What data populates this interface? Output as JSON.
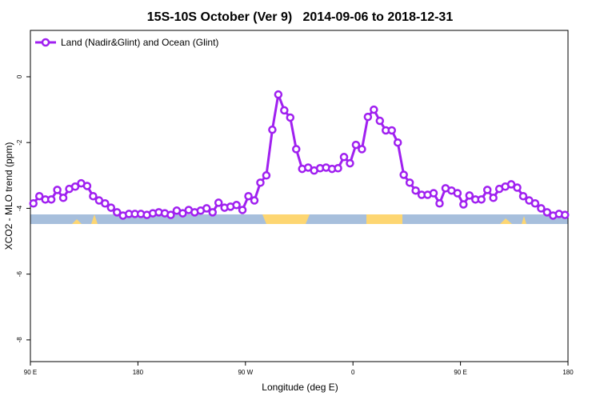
{
  "chart_data": {
    "type": "line",
    "title": "15S-10S October (Ver 9)   2014-09-06 to 2018-12-31",
    "xlabel": "Longitude (deg E)",
    "ylabel": "XCO2 - MLO trend (ppm)",
    "legend": "top-left",
    "xlim": [
      90,
      540
    ],
    "xticks": [
      {
        "value": 90,
        "label": "90 E"
      },
      180,
      {
        "value": 270,
        "label": "90 W"
      },
      {
        "value": 360,
        "label": "0"
      },
      {
        "value": 450,
        "label": "90 E"
      },
      {
        "value": 540,
        "label": "180"
      }
    ],
    "ylim": [
      -8.66,
      1.41
    ],
    "yticks": [
      0,
      -2,
      -4,
      -6,
      -8
    ],
    "x": [
      92.5,
      97.5,
      102.5,
      107.5,
      112.5,
      117.5,
      122.5,
      127.5,
      132.5,
      137.5,
      142.5,
      147.5,
      152.5,
      157.5,
      162.5,
      167.5,
      172.5,
      177.5,
      182.5,
      187.5,
      192.5,
      197.5,
      202.5,
      207.5,
      212.5,
      217.5,
      222.5,
      227.5,
      232.5,
      237.5,
      242.5,
      247.5,
      252.5,
      257.5,
      262.5,
      267.5,
      272.5,
      277.5,
      282.5,
      287.5,
      292.5,
      297.5,
      302.5,
      307.5,
      312.5,
      317.5,
      322.5,
      327.5,
      332.5,
      337.5,
      342.5,
      347.5,
      352.5,
      357.5,
      362.5,
      367.5,
      372.5,
      377.5,
      382.5,
      387.5,
      392.5,
      397.5,
      402.5,
      407.5,
      412.5,
      417.5,
      422.5,
      427.5,
      432.5,
      437.5,
      442.5,
      447.5,
      452.5,
      457.5,
      462.5,
      467.5,
      472.5,
      477.5,
      482.5,
      487.5,
      492.5,
      497.5,
      502.5,
      507.5,
      512.5,
      517.5,
      522.5,
      527.5,
      532.5,
      537.5
    ],
    "series": [
      {
        "name": "Land (Nadir&Glint) and Ocean (Glint)",
        "color": "#a020f0",
        "values": [
          -3.85,
          -3.63,
          -3.73,
          -3.73,
          -3.44,
          -3.68,
          -3.41,
          -3.34,
          -3.24,
          -3.32,
          -3.63,
          -3.76,
          -3.85,
          -3.98,
          -4.12,
          -4.22,
          -4.17,
          -4.17,
          -4.17,
          -4.2,
          -4.15,
          -4.12,
          -4.15,
          -4.2,
          -4.07,
          -4.15,
          -4.05,
          -4.12,
          -4.07,
          -4.0,
          -4.12,
          -3.83,
          -3.98,
          -3.95,
          -3.9,
          -4.05,
          -3.63,
          -3.76,
          -3.22,
          -3.0,
          -1.61,
          -0.54,
          -1.02,
          -1.24,
          -2.2,
          -2.8,
          -2.76,
          -2.85,
          -2.78,
          -2.76,
          -2.8,
          -2.78,
          -2.44,
          -2.63,
          -2.07,
          -2.2,
          -1.22,
          -1.0,
          -1.34,
          -1.63,
          -1.63,
          -2.0,
          -2.98,
          -3.22,
          -3.46,
          -3.59,
          -3.59,
          -3.54,
          -3.85,
          -3.39,
          -3.46,
          -3.54,
          -3.88,
          -3.61,
          -3.73,
          -3.73,
          -3.44,
          -3.68,
          -3.41,
          -3.34,
          -3.27,
          -3.37,
          -3.63,
          -3.76,
          -3.85,
          -4.0,
          -4.12,
          -4.22,
          -4.17,
          -4.2
        ]
      }
    ]
  }
}
